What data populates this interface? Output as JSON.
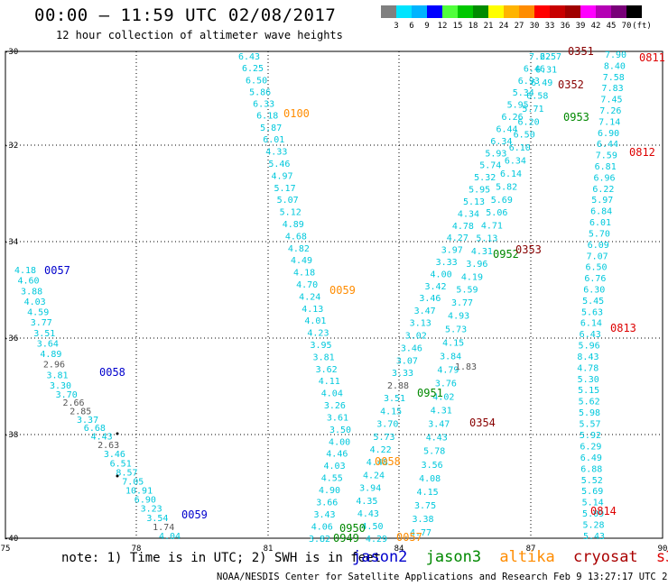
{
  "header": {
    "title": "00:00 – 11:59 UTC 02/08/2017",
    "subtitle": "12 hour collection of altimeter wave heights"
  },
  "color_scale": {
    "colors": [
      "#808080",
      "#00e4ff",
      "#00b4ff",
      "#0000ff",
      "#50ff3c",
      "#00c800",
      "#008c00",
      "#ffff00",
      "#ffb400",
      "#ff8c00",
      "#ff0000",
      "#c80000",
      "#a00000",
      "#ff00ff",
      "#b400b4",
      "#780078",
      "#000000"
    ],
    "labels": [
      "3",
      "6",
      "9",
      "12",
      "15",
      "18",
      "21",
      "24",
      "27",
      "30",
      "33",
      "36",
      "39",
      "42",
      "45",
      "70",
      "(ft)"
    ]
  },
  "map": {
    "lon_range": [
      75,
      90
    ],
    "lat_range": [
      -40,
      -30
    ],
    "x_ticks": [
      "75",
      "78",
      "81",
      "84",
      "87",
      "90"
    ],
    "y_ticks": [
      "-30",
      "-32",
      "-34",
      "-36",
      "-38",
      "-40"
    ],
    "grid": "dotted"
  },
  "satellite_colors": {
    "jason2": "#0000cc",
    "jason3": "#008800",
    "altika": "#ff8c00",
    "cryosat": "#660000",
    "s3a": "#dd0000",
    "wave": "#00c8dc",
    "wave_low": "#555555"
  },
  "tracks": [
    {
      "satellite": "jason2",
      "values": [
        "4.18",
        "4.60",
        "3.88",
        "4.03",
        "4.59",
        "3.77",
        "3.51",
        "3.64",
        "4.89",
        "2.96",
        "3.81",
        "3.30",
        "3.70",
        "2.66",
        "2.85",
        "3.37",
        "6.68",
        "4.43",
        "2.63",
        "3.46",
        "6.51",
        "8.57",
        "7.05",
        "10.91",
        "6.90",
        "3.23",
        "3.54",
        "1.74",
        "4.04"
      ]
    },
    {
      "satellite": "altika",
      "values": [
        "6.43",
        "6.25",
        "6.50",
        "5.86",
        "6.33",
        "6.18",
        "5.87",
        "6.01",
        "4.33",
        "5.46",
        "4.97",
        "5.17",
        "5.07",
        "5.12",
        "4.89",
        "4.68",
        "4.82",
        "4.49",
        "4.18",
        "4.70",
        "4.24",
        "4.13",
        "4.01",
        "4.23",
        "3.95",
        "3.81",
        "3.62",
        "4.11",
        "4.04",
        "3.26",
        "3.61",
        "3.50",
        "4.00",
        "4.46",
        "4.03",
        "4.55",
        "4.90",
        "3.66",
        "3.43",
        "4.06",
        "3.82"
      ]
    },
    {
      "satellite": "jason3",
      "values": [
        "4.29",
        "4.50",
        "4.43",
        "4.35",
        "3.94",
        "4.24",
        "4.48",
        "4.22",
        "5.73",
        "3.70",
        "4.15",
        "3.51",
        "2.88",
        "3.33",
        "3.07",
        "3.46",
        "3.02",
        "3.13",
        "3.47",
        "3.46",
        "3.42",
        "4.00",
        "3.33",
        "3.97",
        "4.27",
        "4.78",
        "4.34",
        "5.13",
        "5.95",
        "5.32",
        "5.74",
        "5.93",
        "6.34",
        "6.44",
        "6.26",
        "5.95",
        "5.34",
        "6.93",
        "6.46",
        "7.22"
      ]
    },
    {
      "satellite": "cryosat",
      "values": [
        "4.77",
        "3.38",
        "3.75",
        "4.15",
        "4.08",
        "3.56",
        "5.78",
        "4.43",
        "3.47",
        "4.31",
        "4.02",
        "3.76",
        "4.79",
        "3.84",
        "4.15",
        "5.73",
        "4.93",
        "3.77",
        "5.59",
        "4.19",
        "3.96",
        "4.31",
        "5.13",
        "4.71",
        "5.06",
        "5.69",
        "5.82",
        "6.14",
        "6.34",
        "6.10",
        "6.50",
        "6.20",
        "5.71",
        "6.58",
        "6.49",
        "6.31",
        "6.57"
      ]
    },
    {
      "satellite": "s3a",
      "values": [
        "5.43",
        "5.28",
        "5.09",
        "5.14",
        "5.69",
        "5.52",
        "6.88",
        "6.49",
        "6.29",
        "5.92",
        "5.57",
        "5.98",
        "5.62",
        "5.15",
        "5.30",
        "4.78",
        "8.43",
        "5.96",
        "6.43",
        "6.14",
        "5.63",
        "5.45",
        "6.30",
        "6.76",
        "6.50",
        "7.07",
        "6.09",
        "5.70",
        "6.01",
        "6.84",
        "5.97",
        "6.22",
        "6.96",
        "6.81",
        "7.59",
        "6.44",
        "6.90",
        "7.14",
        "7.26",
        "7.45",
        "7.83",
        "7.58",
        "8.40",
        "7.90"
      ]
    }
  ],
  "extra_values": [
    "1.83"
  ],
  "time_labels": [
    {
      "text": "0057",
      "satellite": "jason2"
    },
    {
      "text": "0058",
      "satellite": "jason2"
    },
    {
      "text": "0059",
      "satellite": "jason2"
    },
    {
      "text": "0100",
      "satellite": "altika"
    },
    {
      "text": "0059",
      "satellite": "altika"
    },
    {
      "text": "0058",
      "satellite": "altika"
    },
    {
      "text": "0057",
      "satellite": "altika"
    },
    {
      "text": "0951",
      "satellite": "jason3"
    },
    {
      "text": "0950",
      "satellite": "jason3"
    },
    {
      "text": "0949",
      "satellite": "jason3"
    },
    {
      "text": "0952",
      "satellite": "jason3"
    },
    {
      "text": "0953",
      "satellite": "jason3"
    },
    {
      "text": "0351",
      "satellite": "cryosat"
    },
    {
      "text": "0352",
      "satellite": "cryosat"
    },
    {
      "text": "0353",
      "satellite": "cryosat"
    },
    {
      "text": "0354",
      "satellite": "cryosat"
    },
    {
      "text": "0811",
      "satellite": "s3a"
    },
    {
      "text": "0812",
      "satellite": "s3a"
    },
    {
      "text": "0813",
      "satellite": "s3a"
    },
    {
      "text": "0814",
      "satellite": "s3a"
    }
  ],
  "footer": {
    "note": "note: 1) Time is in UTC; 2) SWH is in feet",
    "legend": [
      "jason2",
      "jason3",
      "altika",
      "cryosat",
      "s3a"
    ],
    "credit": "NOAA/NESDIS Center for Satellite Applications and Research   Feb  9 13:27:17 UTC 2017"
  }
}
